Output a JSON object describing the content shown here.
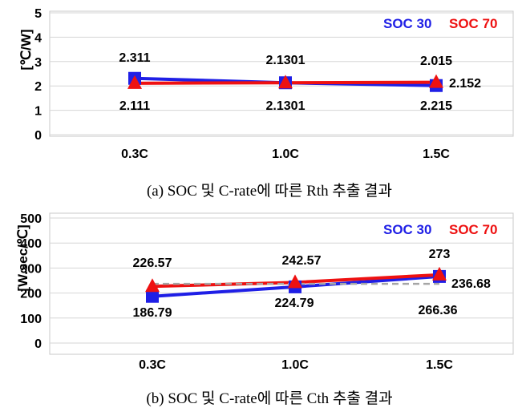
{
  "chart_data": [
    {
      "type": "line",
      "caption": "(a)  SOC  및  C-rate에  따른  Rth  추출  결과",
      "ylabel": "[℃/W]",
      "categories": [
        "0.3C",
        "1.0C",
        "1.5C"
      ],
      "ylim": [
        0,
        5
      ],
      "yticks": [
        "0",
        "1",
        "2",
        "3",
        "4",
        "5"
      ],
      "grid": true,
      "legend_position": "top-right",
      "series": [
        {
          "name": "SOC 30",
          "color": "#1f1fe6",
          "marker": "square",
          "values": [
            2.311,
            2.1301,
            2.015
          ]
        },
        {
          "name": "SOC 70",
          "color": "#ee1111",
          "marker": "triangle",
          "values": [
            2.111,
            2.1301,
            2.152
          ]
        }
      ],
      "data_labels": [
        "2.311",
        "2.111",
        "2.1301",
        "2.1301",
        "2.015",
        "2.215",
        "2.152"
      ]
    },
    {
      "type": "line",
      "caption": "(b)  SOC  및  C-rate에  따른  Cth  추출  결과",
      "ylabel": "[W.sec/℃]",
      "categories": [
        "0.3C",
        "1.0C",
        "1.5C"
      ],
      "ylim": [
        0,
        500
      ],
      "yticks": [
        "0",
        "100",
        "200",
        "300",
        "400",
        "500"
      ],
      "grid": true,
      "legend_position": "top-right",
      "series": [
        {
          "name": "SOC 30",
          "color": "#1f1fe6",
          "marker": "square",
          "values": [
            186.79,
            224.79,
            266.36
          ]
        },
        {
          "name": "SOC 70",
          "color": "#ee1111",
          "marker": "triangle",
          "values": [
            226.57,
            242.57,
            273
          ]
        },
        {
          "color": "#a6a6a6",
          "dashed": true,
          "values": [
            236.68,
            236.68,
            236.68
          ]
        }
      ],
      "data_labels": [
        "226.57",
        "186.79",
        "242.57",
        "224.79",
        "273",
        "236.68",
        "266.36"
      ]
    }
  ]
}
